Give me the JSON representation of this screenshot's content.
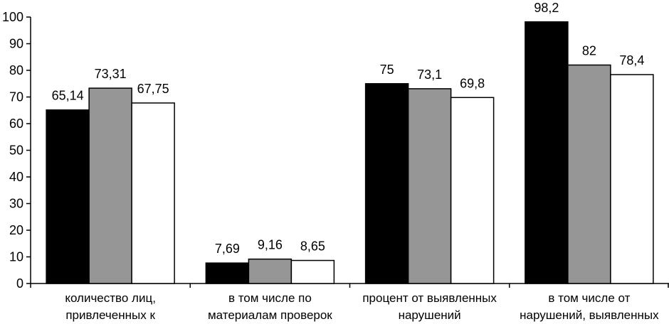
{
  "chart_data": {
    "type": "bar",
    "title": "",
    "xlabel": "",
    "ylabel": "",
    "ylim": [
      0,
      100
    ],
    "yticks": [
      0,
      10,
      20,
      30,
      40,
      50,
      60,
      70,
      80,
      90,
      100
    ],
    "grid": false,
    "legend": "none",
    "categories": [
      [
        "количество лиц,",
        "привлеченных к"
      ],
      [
        "в том числе по",
        "материалам проверок"
      ],
      [
        "процент от выявленных",
        "нарушений"
      ],
      [
        "в том числе от",
        "нарушений, выявленных"
      ]
    ],
    "series": [
      {
        "color": "#000000",
        "values": [
          65.14,
          7.69,
          75,
          98.2
        ],
        "labels": [
          "65,14",
          "7,69",
          "75",
          "98,2"
        ]
      },
      {
        "color": "#969696",
        "values": [
          73.31,
          9.16,
          73.1,
          82
        ],
        "labels": [
          "73,31",
          "9,16",
          "73,1",
          "82"
        ]
      },
      {
        "color": "#ffffff",
        "values": [
          67.75,
          8.65,
          69.8,
          78.4
        ],
        "labels": [
          "67,75",
          "8,65",
          "69,8",
          "78,4"
        ]
      }
    ]
  }
}
